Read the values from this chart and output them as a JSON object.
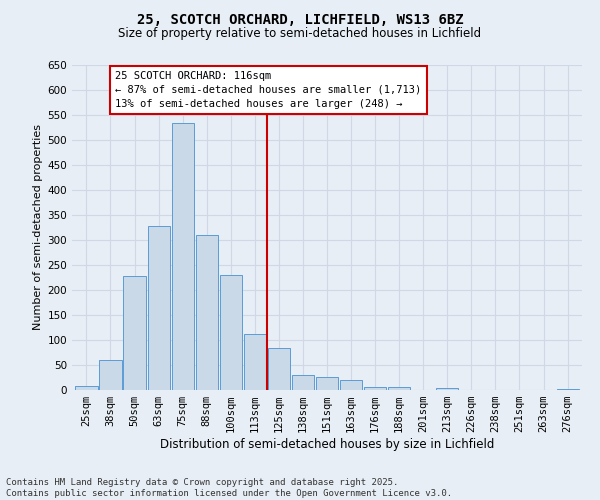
{
  "title": "25, SCOTCH ORCHARD, LICHFIELD, WS13 6BZ",
  "subtitle": "Size of property relative to semi-detached houses in Lichfield",
  "xlabel": "Distribution of semi-detached houses by size in Lichfield",
  "ylabel": "Number of semi-detached properties",
  "categories": [
    "25sqm",
    "38sqm",
    "50sqm",
    "63sqm",
    "75sqm",
    "88sqm",
    "100sqm",
    "113sqm",
    "125sqm",
    "138sqm",
    "151sqm",
    "163sqm",
    "176sqm",
    "188sqm",
    "201sqm",
    "213sqm",
    "226sqm",
    "238sqm",
    "251sqm",
    "263sqm",
    "276sqm"
  ],
  "values": [
    8,
    60,
    228,
    328,
    535,
    310,
    230,
    113,
    84,
    30,
    26,
    20,
    6,
    7,
    0,
    4,
    0,
    0,
    0,
    0,
    2
  ],
  "bar_color": "#c9d9e8",
  "bar_edge_color": "#5b9bd5",
  "grid_color": "#d0d8e8",
  "bg_color": "#e8eef5",
  "annotation_line_color": "#cc0000",
  "annotation_text_line1": "25 SCOTCH ORCHARD: 116sqm",
  "annotation_text_line2": "← 87% of semi-detached houses are smaller (1,713)",
  "annotation_text_line3": "13% of semi-detached houses are larger (248) →",
  "annotation_box_color": "#ffffff",
  "annotation_box_edge": "#cc0000",
  "footer_line1": "Contains HM Land Registry data © Crown copyright and database right 2025.",
  "footer_line2": "Contains public sector information licensed under the Open Government Licence v3.0.",
  "ylim": [
    0,
    650
  ],
  "yticks": [
    0,
    50,
    100,
    150,
    200,
    250,
    300,
    350,
    400,
    450,
    500,
    550,
    600,
    650
  ],
  "title_fontsize": 10,
  "subtitle_fontsize": 8.5,
  "xlabel_fontsize": 8.5,
  "ylabel_fontsize": 8,
  "tick_fontsize": 7.5,
  "annotation_fontsize": 7.5,
  "footer_fontsize": 6.5
}
